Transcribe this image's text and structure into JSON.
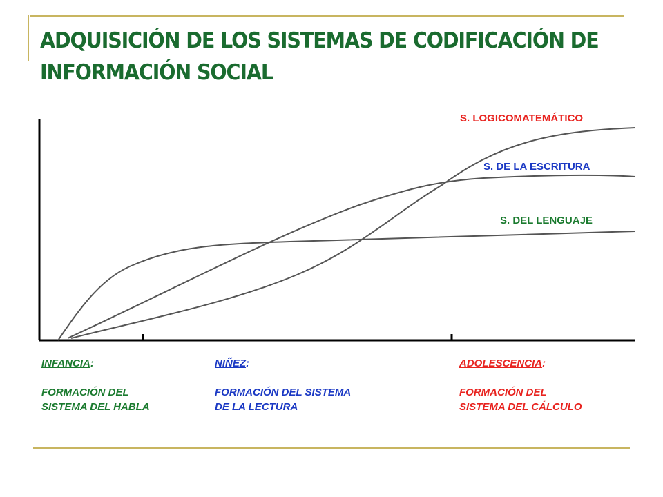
{
  "title": {
    "line1": "ADQUISICIÓN DE LOS SISTEMAS DE CODIFICACIÓN DE",
    "line2": "INFORMACIÓN SOCIAL"
  },
  "curves": {
    "logicomatematico": {
      "label": "S. LOGICOMATEMÁTICO",
      "color": "#e8231f"
    },
    "escritura": {
      "label": "S. DE LA ESCRITURA",
      "color": "#1b39c4"
    },
    "lenguaje": {
      "label": "S. DEL LENGUAJE",
      "color": "#1a7a2e"
    }
  },
  "stages": [
    {
      "name": "INFANCIA",
      "colon": ":",
      "desc1": "FORMACIÓN DEL",
      "desc2": "SISTEMA DEL HABLA",
      "color": "#1a7a2e"
    },
    {
      "name": "NIÑEZ",
      "colon": ":",
      "desc1": "FORMACIÓN DEL SISTEMA",
      "desc2": "DE LA LECTURA",
      "color": "#1b39c4"
    },
    {
      "name": "ADOLESCENCIA",
      "colon": ":",
      "desc1": "FORMACIÓN DEL",
      "desc2": "SISTEMA DEL CÁLCULO",
      "color": "#e8231f"
    }
  ],
  "colors": {
    "title": "#1a6b2f",
    "rule": "#c8b560",
    "axis": "#000000",
    "curve": "#555555"
  }
}
